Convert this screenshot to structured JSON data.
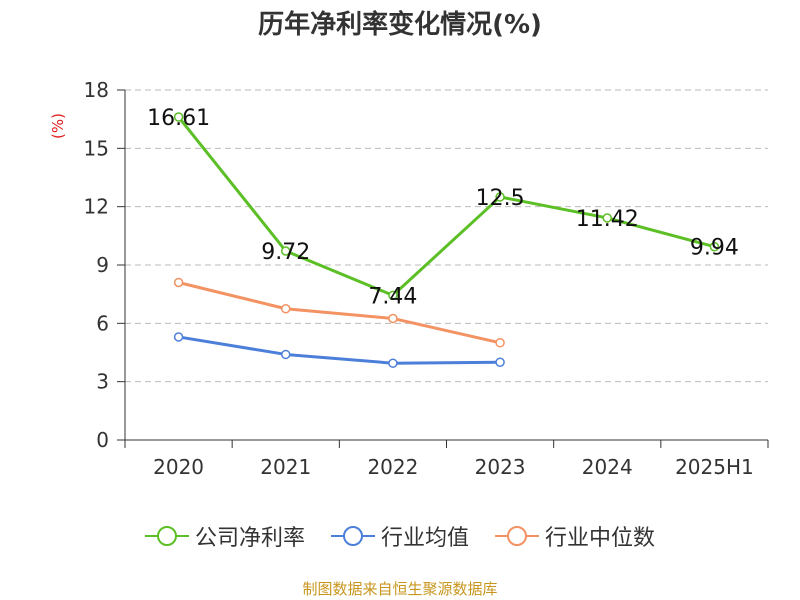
{
  "chart_data": {
    "type": "line",
    "title": "历年净利率变化情况(%)",
    "ylabel": "(%)",
    "categories": [
      "2020",
      "2021",
      "2022",
      "2023",
      "2024",
      "2025H1"
    ],
    "ylim": [
      0,
      18
    ],
    "yticks": [
      0,
      3,
      6,
      9,
      12,
      15,
      18
    ],
    "grid": true,
    "legend_position": "bottom",
    "series": [
      {
        "name": "公司净利率",
        "color": "#5cbf25",
        "values": [
          16.61,
          9.72,
          7.44,
          12.5,
          11.42,
          9.94
        ],
        "labels": [
          "16.61",
          "9.72",
          "7.44",
          "12.5",
          "11.42",
          "9.94"
        ]
      },
      {
        "name": "行业均值",
        "color": "#4c7fd9",
        "values": [
          5.3,
          4.4,
          3.95,
          4.0,
          null,
          null
        ]
      },
      {
        "name": "行业中位数",
        "color": "#f39262",
        "values": [
          8.1,
          6.75,
          6.25,
          5.0,
          null,
          null
        ]
      }
    ],
    "source": "制图数据来自恒生聚源数据库"
  }
}
